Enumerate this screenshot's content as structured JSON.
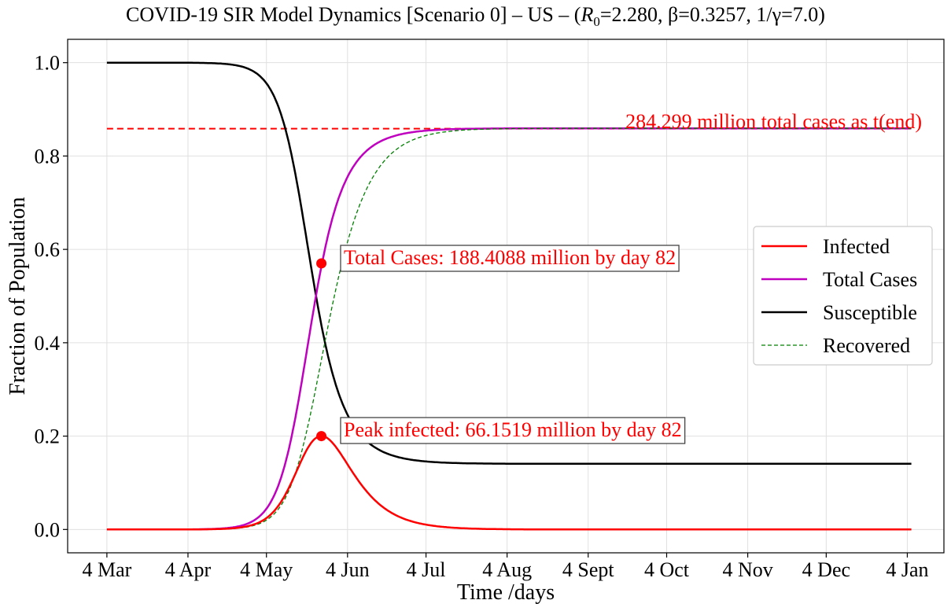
{
  "chart_data": {
    "type": "line",
    "title_prefix": "COVID-19 SIR Model Dynamics [Scenario 0] – US – (",
    "title_r0_label": "R",
    "title_r0_sub": "0",
    "title_r0_value": "=2.280, ",
    "title_beta": "β=0.3257, ",
    "title_gamma": "1/γ=7.0)",
    "xlabel": "Time /days",
    "ylabel": "Fraction of Population",
    "x_tick_labels": [
      "4 Mar",
      "4 Apr",
      "4 May",
      "4 Jun",
      "4 Jul",
      "4 Aug",
      "4 Sept",
      "4 Oct",
      "4 Nov",
      "4 Dec",
      "4 Jan"
    ],
    "x_tick_days": [
      0,
      31,
      61,
      92,
      122,
      153,
      184,
      214,
      245,
      275,
      306
    ],
    "y_tick_labels": [
      "0.0",
      "0.2",
      "0.4",
      "0.6",
      "0.8",
      "1.0"
    ],
    "y_tick_values": [
      0,
      0.2,
      0.4,
      0.6,
      0.8,
      1.0
    ],
    "xlim": [
      -15,
      320
    ],
    "ylim": [
      -0.05,
      1.05
    ],
    "grid": true,
    "legend_position": "center-right",
    "parameters": {
      "R0": 2.28,
      "beta": 0.3257,
      "infectious_period_days": 7.0
    },
    "series": [
      {
        "name": "Infected",
        "color": "#ff0000",
        "style": "solid"
      },
      {
        "name": "Total Cases",
        "color": "#bf00bf",
        "style": "solid"
      },
      {
        "name": "Susceptible",
        "color": "#000000",
        "style": "solid"
      },
      {
        "name": "Recovered",
        "color": "#008000",
        "style": "dashed"
      }
    ],
    "final_total_line": {
      "value": 0.8585,
      "color": "#ff0000",
      "style": "dashed"
    },
    "final_total_annotation": "284.299 million total cases as t(end)",
    "peak_infected": {
      "day": 82,
      "value": 0.2,
      "annotation": "Peak infected: 66.1519 million by day 82"
    },
    "total_at_peak": {
      "day": 82,
      "value": 0.57,
      "annotation": "Total Cases: 188.4088 million by day 82"
    },
    "final_susceptible": 0.1415
  }
}
